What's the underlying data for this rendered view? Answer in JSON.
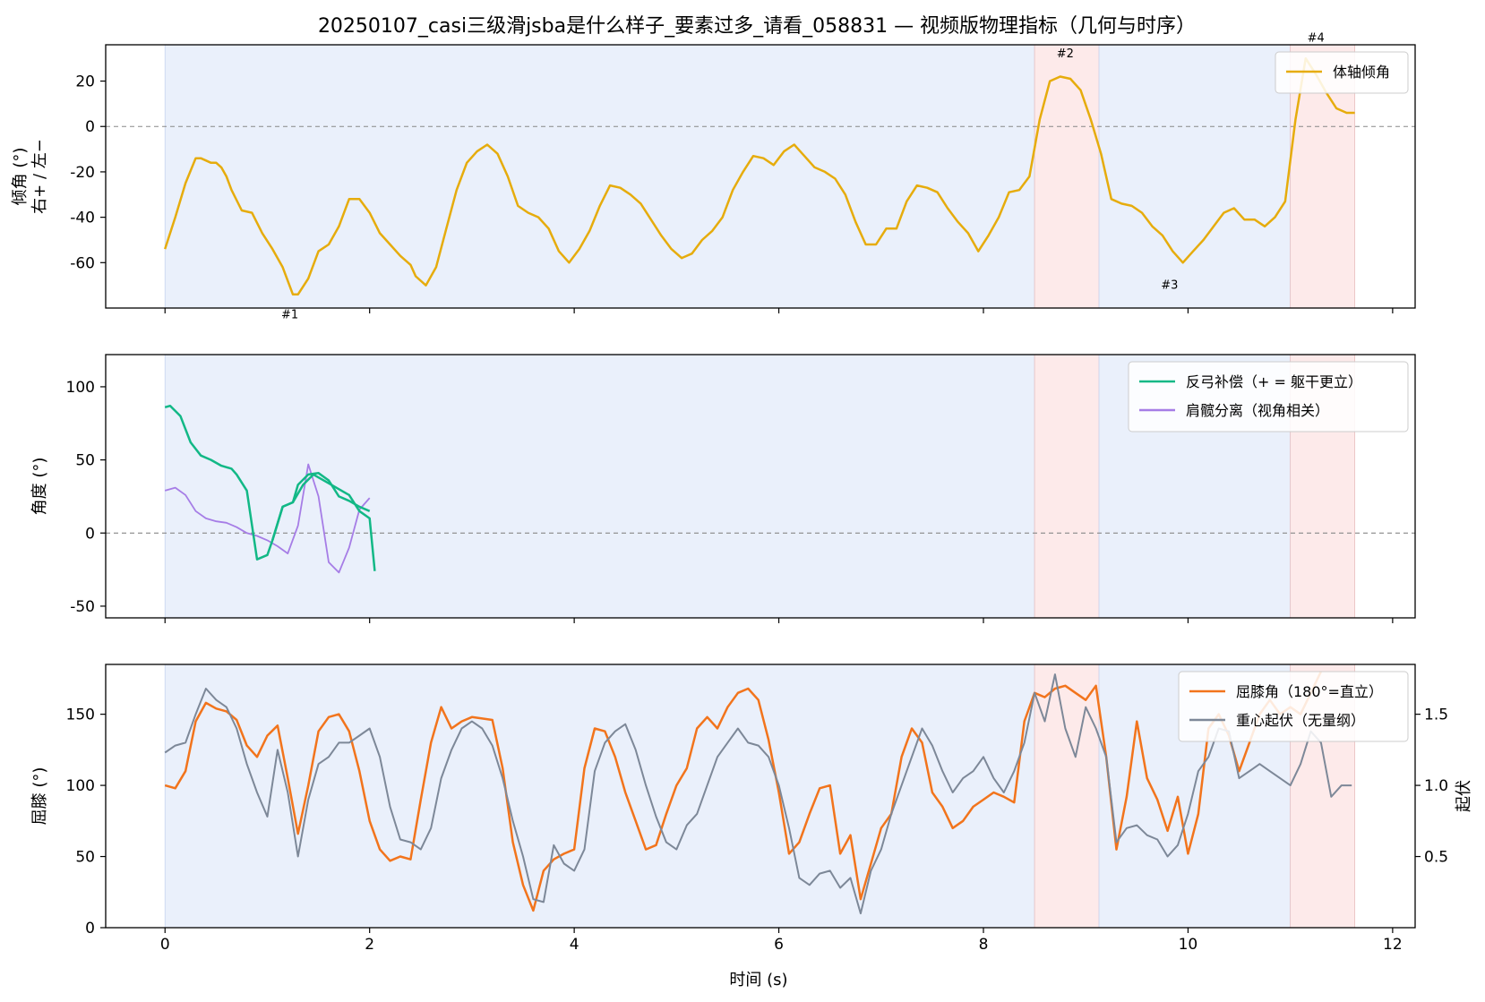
{
  "title": "20250107_casi三级滑jsba是什么样子_要素过多_请看_058831 — 视频版物理指标（几何与时序）",
  "colors": {
    "tilt": "#e6ac0c",
    "comp": "#12b886",
    "sep": "#a67de6",
    "knee": "#f2741c",
    "com": "#7d8898",
    "bg_blue": "#eaf0fb",
    "bg_red": "#fdeaea"
  },
  "shared_x": {
    "label": "时间 (s)",
    "range": [
      -0.58,
      12.22
    ],
    "ticks": [
      0,
      2,
      4,
      6,
      8,
      10,
      12
    ],
    "tick_labels": [
      "0",
      "2",
      "4",
      "6",
      "8",
      "10",
      "12"
    ]
  },
  "chart_data": [
    {
      "type": "line",
      "panel": "tilt",
      "ylabel_line1": "倾角 (°)",
      "ylabel_line2": "右+ / 左−",
      "ylim": [
        -80,
        36
      ],
      "yticks": [
        20,
        0,
        -20,
        -40,
        -60
      ],
      "ytick_labels": [
        "20",
        "0",
        "-20",
        "-40",
        "-60"
      ],
      "zero_line": true,
      "shaded_regions": [
        {
          "kind": "blue",
          "x0": 0.0,
          "x1": 8.5
        },
        {
          "kind": "red",
          "x0": 8.5,
          "x1": 9.13
        },
        {
          "kind": "blue",
          "x0": 9.13,
          "x1": 11.0
        },
        {
          "kind": "red",
          "x0": 11.0,
          "x1": 11.63
        }
      ],
      "annotations": [
        {
          "text": "#1",
          "x": 1.22,
          "y": -83
        },
        {
          "text": "#2",
          "x": 8.8,
          "y": 32
        },
        {
          "text": "#3",
          "x": 9.82,
          "y": -70
        },
        {
          "text": "#4",
          "x": 11.25,
          "y": 39
        }
      ],
      "series": [
        {
          "name": "体轴倾角",
          "color_key": "tilt",
          "x": [
            0.0,
            0.1,
            0.2,
            0.3,
            0.35,
            0.45,
            0.5,
            0.55,
            0.6,
            0.65,
            0.75,
            0.85,
            0.95,
            1.05,
            1.15,
            1.25,
            1.3,
            1.4,
            1.5,
            1.6,
            1.7,
            1.8,
            1.9,
            2.0,
            2.1,
            2.2,
            2.3,
            2.4,
            2.45,
            2.55,
            2.65,
            2.75,
            2.85,
            2.95,
            3.05,
            3.15,
            3.25,
            3.35,
            3.45,
            3.55,
            3.65,
            3.75,
            3.85,
            3.95,
            4.05,
            4.15,
            4.25,
            4.35,
            4.45,
            4.55,
            4.65,
            4.75,
            4.85,
            4.95,
            5.05,
            5.15,
            5.25,
            5.35,
            5.45,
            5.55,
            5.65,
            5.75,
            5.85,
            5.95,
            6.05,
            6.15,
            6.25,
            6.35,
            6.45,
            6.55,
            6.65,
            6.75,
            6.85,
            6.95,
            7.05,
            7.15,
            7.25,
            7.35,
            7.45,
            7.55,
            7.65,
            7.75,
            7.85,
            7.95,
            8.05,
            8.15,
            8.25,
            8.35,
            8.45,
            8.55,
            8.65,
            8.75,
            8.85,
            8.95,
            9.05,
            9.15,
            9.25,
            9.35,
            9.45,
            9.55,
            9.65,
            9.75,
            9.85,
            9.95,
            10.05,
            10.15,
            10.25,
            10.35,
            10.45,
            10.55,
            10.65,
            10.75,
            10.85,
            10.95,
            11.05,
            11.15,
            11.25,
            11.35,
            11.45,
            11.55,
            11.63
          ],
          "y": [
            -54,
            -40,
            -25,
            -14,
            -14,
            -16,
            -16,
            -18,
            -22,
            -28,
            -37,
            -38,
            -47,
            -54,
            -62,
            -74,
            -74,
            -67,
            -55,
            -52,
            -44,
            -32,
            -32,
            -38,
            -47,
            -52,
            -57,
            -61,
            -66,
            -70,
            -62,
            -45,
            -28,
            -16,
            -11,
            -8,
            -12,
            -22,
            -35,
            -38,
            -40,
            -45,
            -55,
            -60,
            -54,
            -46,
            -35,
            -26,
            -27,
            -30,
            -34,
            -41,
            -48,
            -54,
            -58,
            -56,
            -50,
            -46,
            -40,
            -28,
            -20,
            -13,
            -14,
            -17,
            -11,
            -8,
            -13,
            -18,
            -20,
            -23,
            -30,
            -42,
            -52,
            -52,
            -45,
            -45,
            -33,
            -26,
            -27,
            -29,
            -36,
            -42,
            -47,
            -55,
            -48,
            -40,
            -29,
            -28,
            -22,
            3,
            20,
            22,
            21,
            16,
            3,
            -12,
            -32,
            -34,
            -35,
            -38,
            -44,
            -48,
            -55,
            -60,
            -55,
            -50,
            -44,
            -38,
            -36,
            -41,
            -41,
            -44,
            -40,
            -33,
            3,
            30,
            23,
            15,
            8,
            6,
            6
          ]
        }
      ]
    },
    {
      "type": "line",
      "panel": "angles",
      "ylabel": "角度 (°)",
      "ylim": [
        -58,
        122
      ],
      "yticks": [
        100,
        50,
        0,
        -50
      ],
      "ytick_labels": [
        "100",
        "50",
        "0",
        "-50"
      ],
      "zero_line": true,
      "series": [
        {
          "name": "反弓补偿（+ = 躯干更立）",
          "color_key": "comp",
          "segments": [
            {
              "x": [
                0.0,
                0.05,
                0.15,
                0.25,
                0.35,
                0.45,
                0.55,
                0.65,
                0.7,
                0.8,
                0.9,
                1.0,
                1.05,
                1.15,
                1.25,
                1.3,
                1.4,
                1.5,
                1.6,
                1.7,
                1.8,
                1.9,
                2.0
              ],
              "y": [
                86,
                87,
                80,
                62,
                53,
                50,
                46,
                44,
                40,
                29,
                -18,
                -15,
                -5,
                18,
                21,
                33,
                40,
                41,
                36,
                25,
                22,
                18,
                15
              ]
            },
            {
              "x": [
                1.05,
                1.15,
                1.25,
                1.35,
                1.45,
                1.5,
                1.6,
                1.7,
                1.8,
                1.9,
                2.0,
                2.05
              ],
              "y": [
                -5,
                18,
                21,
                33,
                40,
                38,
                34,
                30,
                26,
                15,
                10,
                -26
              ]
            }
          ]
        },
        {
          "name": "肩髋分离（视角相关）",
          "color_key": "sep",
          "x": [
            0.0,
            0.1,
            0.2,
            0.3,
            0.4,
            0.5,
            0.6,
            0.7,
            0.8,
            0.9,
            1.0,
            1.1,
            1.2,
            1.3,
            1.4,
            1.5,
            1.6,
            1.7,
            1.8,
            1.9,
            2.0
          ],
          "y": [
            29,
            31,
            26,
            15,
            10,
            8,
            7,
            4,
            0,
            -2,
            -5,
            -9,
            -14,
            5,
            47,
            25,
            -20,
            -27,
            -10,
            16,
            24
          ]
        }
      ]
    },
    {
      "type": "line",
      "panel": "knee",
      "ylabel_left": "屈膝 (°)",
      "ylabel_right": "起伏",
      "ylim_left": [
        0,
        185
      ],
      "ylim_right": [
        0.0,
        1.85
      ],
      "yticks_left": [
        150,
        100,
        50,
        0
      ],
      "ytick_labels_left": [
        "150",
        "100",
        "50",
        "0"
      ],
      "yticks_right": [
        1.5,
        1.0,
        0.5
      ],
      "ytick_labels_right": [
        "1.5",
        "1.0",
        "0.5"
      ],
      "series": [
        {
          "name": "屈膝角（180°=直立）",
          "axis": "left",
          "color_key": "knee",
          "x": [
            0.0,
            0.1,
            0.2,
            0.3,
            0.4,
            0.5,
            0.6,
            0.7,
            0.8,
            0.9,
            1.0,
            1.1,
            1.2,
            1.3,
            1.4,
            1.5,
            1.6,
            1.7,
            1.8,
            1.9,
            2.0,
            2.1,
            2.2,
            2.3,
            2.4,
            2.5,
            2.6,
            2.7,
            2.8,
            2.9,
            3.0,
            3.1,
            3.2,
            3.3,
            3.4,
            3.5,
            3.6,
            3.7,
            3.8,
            3.9,
            4.0,
            4.1,
            4.2,
            4.3,
            4.4,
            4.5,
            4.6,
            4.7,
            4.8,
            4.9,
            5.0,
            5.1,
            5.2,
            5.3,
            5.4,
            5.5,
            5.6,
            5.7,
            5.8,
            5.9,
            6.0,
            6.1,
            6.2,
            6.3,
            6.4,
            6.5,
            6.6,
            6.7,
            6.8,
            6.9,
            7.0,
            7.1,
            7.2,
            7.3,
            7.4,
            7.5,
            7.6,
            7.7,
            7.8,
            7.9,
            8.0,
            8.1,
            8.2,
            8.3,
            8.4,
            8.5,
            8.6,
            8.7,
            8.8,
            8.9,
            9.0,
            9.1,
            9.2,
            9.3,
            9.4,
            9.5,
            9.6,
            9.7,
            9.8,
            9.9,
            10.0,
            10.1,
            10.2,
            10.3,
            10.4,
            10.5,
            10.6,
            10.7,
            10.8,
            10.9,
            11.0,
            11.1,
            11.2,
            11.3
          ],
          "y": [
            100,
            98,
            110,
            145,
            158,
            154,
            152,
            146,
            128,
            120,
            135,
            142,
            105,
            66,
            100,
            138,
            148,
            150,
            138,
            110,
            75,
            55,
            47,
            50,
            48,
            90,
            130,
            155,
            140,
            145,
            148,
            147,
            146,
            112,
            60,
            30,
            12,
            40,
            48,
            52,
            55,
            112,
            140,
            138,
            120,
            95,
            75,
            55,
            58,
            80,
            100,
            112,
            140,
            148,
            140,
            155,
            165,
            168,
            160,
            132,
            95,
            52,
            60,
            80,
            98,
            100,
            52,
            65,
            20,
            45,
            70,
            80,
            120,
            140,
            130,
            95,
            85,
            70,
            75,
            85,
            90,
            95,
            92,
            88,
            145,
            165,
            162,
            168,
            170,
            165,
            160,
            170,
            120,
            55,
            92,
            145,
            105,
            90,
            68,
            92,
            52,
            80,
            140,
            150,
            135,
            110,
            130,
            150,
            160,
            150,
            155,
            150,
            165,
            180
          ]
        },
        {
          "name": "重心起伏（无量纲）",
          "axis": "right",
          "color_key": "com",
          "x": [
            0.0,
            0.1,
            0.2,
            0.3,
            0.4,
            0.5,
            0.6,
            0.7,
            0.8,
            0.9,
            1.0,
            1.1,
            1.2,
            1.3,
            1.4,
            1.5,
            1.6,
            1.7,
            1.8,
            1.9,
            2.0,
            2.1,
            2.2,
            2.3,
            2.4,
            2.5,
            2.6,
            2.7,
            2.8,
            2.9,
            3.0,
            3.1,
            3.2,
            3.3,
            3.4,
            3.5,
            3.6,
            3.7,
            3.8,
            3.9,
            4.0,
            4.1,
            4.2,
            4.3,
            4.4,
            4.5,
            4.6,
            4.7,
            4.8,
            4.9,
            5.0,
            5.1,
            5.2,
            5.3,
            5.4,
            5.5,
            5.6,
            5.7,
            5.8,
            5.9,
            6.0,
            6.1,
            6.2,
            6.3,
            6.4,
            6.5,
            6.6,
            6.7,
            6.8,
            6.9,
            7.0,
            7.1,
            7.2,
            7.3,
            7.4,
            7.5,
            7.6,
            7.7,
            7.8,
            7.9,
            8.0,
            8.1,
            8.2,
            8.3,
            8.4,
            8.5,
            8.6,
            8.7,
            8.8,
            8.9,
            9.0,
            9.1,
            9.2,
            9.3,
            9.4,
            9.5,
            9.6,
            9.7,
            9.8,
            9.9,
            10.0,
            10.1,
            10.2,
            10.3,
            10.4,
            10.5,
            10.6,
            10.7,
            10.8,
            10.9,
            11.0,
            11.1,
            11.2,
            11.3,
            11.4,
            11.5,
            11.6
          ],
          "y": [
            1.23,
            1.28,
            1.3,
            1.5,
            1.68,
            1.6,
            1.55,
            1.4,
            1.15,
            0.95,
            0.78,
            1.25,
            0.95,
            0.5,
            0.9,
            1.15,
            1.2,
            1.3,
            1.3,
            1.35,
            1.4,
            1.2,
            0.85,
            0.62,
            0.6,
            0.55,
            0.7,
            1.05,
            1.25,
            1.4,
            1.45,
            1.4,
            1.28,
            1.05,
            0.75,
            0.5,
            0.2,
            0.18,
            0.58,
            0.45,
            0.4,
            0.55,
            1.1,
            1.3,
            1.38,
            1.43,
            1.25,
            1.0,
            0.78,
            0.6,
            0.55,
            0.72,
            0.8,
            1.0,
            1.2,
            1.3,
            1.4,
            1.3,
            1.28,
            1.2,
            1.0,
            0.7,
            0.35,
            0.3,
            0.38,
            0.4,
            0.28,
            0.35,
            0.1,
            0.4,
            0.55,
            0.8,
            1.0,
            1.2,
            1.4,
            1.28,
            1.1,
            0.95,
            1.05,
            1.1,
            1.2,
            1.05,
            0.95,
            1.1,
            1.3,
            1.65,
            1.45,
            1.78,
            1.4,
            1.2,
            1.55,
            1.4,
            1.2,
            0.6,
            0.7,
            0.72,
            0.65,
            0.62,
            0.5,
            0.58,
            0.8,
            1.1,
            1.2,
            1.4,
            1.38,
            1.05,
            1.1,
            1.15,
            1.1,
            1.05,
            1.0,
            1.15,
            1.38,
            1.3,
            0.92,
            1.0,
            1.0
          ]
        }
      ]
    }
  ]
}
